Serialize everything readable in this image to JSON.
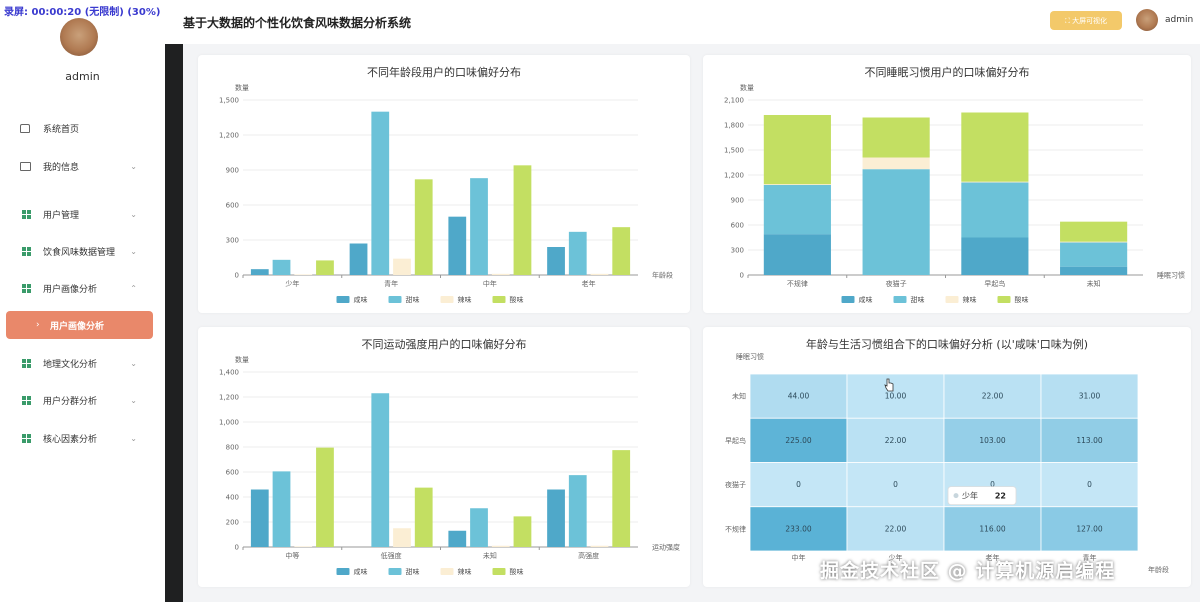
{
  "recording_badge": "录屏: 00:00:20 (无限制) (30%)",
  "sidebar": {
    "user": "admin",
    "items": [
      {
        "label": "系统首页",
        "icon": "home-icon",
        "arrow": ""
      },
      {
        "label": "我的信息",
        "icon": "card-icon",
        "arrow": "⌄"
      },
      {
        "label": "用户管理",
        "icon": "grid-icon",
        "arrow": "⌄"
      },
      {
        "label": "饮食风味数据管理",
        "icon": "grid-icon",
        "arrow": "⌄"
      },
      {
        "label": "用户画像分析",
        "icon": "grid-icon",
        "arrow": "⌃"
      },
      {
        "label": "地理文化分析",
        "icon": "grid-icon",
        "arrow": "⌄"
      },
      {
        "label": "用户分群分析",
        "icon": "grid-icon",
        "arrow": "⌄"
      },
      {
        "label": "核心因素分析",
        "icon": "grid-icon",
        "arrow": "⌄"
      }
    ],
    "active_sub_item": "用户画像分析",
    "active_arrow": "›"
  },
  "header": {
    "title": "基于大数据的个性化饮食风味数据分析系统",
    "screen_button": "⛶ 大屏可视化",
    "user": "admin"
  },
  "colors": {
    "salty": "#4fa8c9",
    "sweet": "#6cc2d8",
    "spicy": "#fbeed4",
    "sour": "#c3df62",
    "accent": "#e9886a"
  },
  "chart_data": [
    {
      "type": "bar",
      "title": "不同年龄段用户的口味偏好分布",
      "xlabel": "年龄段",
      "ylabel": "数量",
      "categories": [
        "少年",
        "青年",
        "中年",
        "老年"
      ],
      "yticks": [
        "0",
        "300",
        "600",
        "900",
        "1,200",
        "1,500"
      ],
      "ylim": [
        0,
        1500
      ],
      "series": [
        {
          "name": "咸味",
          "values": [
            50,
            270,
            500,
            240
          ]
        },
        {
          "name": "甜味",
          "values": [
            130,
            1400,
            830,
            370
          ]
        },
        {
          "name": "辣味",
          "values": [
            5,
            140,
            10,
            10
          ]
        },
        {
          "name": "酸味",
          "values": [
            125,
            820,
            940,
            410
          ]
        }
      ]
    },
    {
      "type": "stacked-bar",
      "title": "不同睡眠习惯用户的口味偏好分布",
      "xlabel": "睡眠习惯",
      "ylabel": "数量",
      "categories": [
        "不规律",
        "夜猫子",
        "早起鸟",
        "未知"
      ],
      "yticks": [
        "0",
        "300",
        "600",
        "900",
        "1,200",
        "1,500",
        "1,800",
        "2,100"
      ],
      "ylim": [
        0,
        2100
      ],
      "series": [
        {
          "name": "咸味",
          "values": [
            490,
            0,
            450,
            100
          ]
        },
        {
          "name": "甜味",
          "values": [
            590,
            1270,
            660,
            290
          ]
        },
        {
          "name": "辣味",
          "values": [
            10,
            140,
            10,
            10
          ]
        },
        {
          "name": "酸味",
          "values": [
            830,
            480,
            830,
            240
          ]
        }
      ]
    },
    {
      "type": "bar",
      "title": "不同运动强度用户的口味偏好分布",
      "xlabel": "运动强度",
      "ylabel": "数量",
      "categories": [
        "中等",
        "低强度",
        "未知",
        "高强度"
      ],
      "yticks": [
        "0",
        "200",
        "400",
        "600",
        "800",
        "1,000",
        "1,200",
        "1,400"
      ],
      "ylim": [
        0,
        1400
      ],
      "series": [
        {
          "name": "咸味",
          "values": [
            460,
            0,
            130,
            460
          ]
        },
        {
          "name": "甜味",
          "values": [
            605,
            1230,
            310,
            575
          ]
        },
        {
          "name": "辣味",
          "values": [
            5,
            150,
            10,
            10
          ]
        },
        {
          "name": "酸味",
          "values": [
            795,
            475,
            245,
            775
          ]
        }
      ]
    },
    {
      "type": "heatmap",
      "title": "年龄与生活习惯组合下的口味偏好分析 (以'咸味'口味为例)",
      "xlabel": "年龄段",
      "ylabel": "睡眠习惯",
      "rows": [
        "未知",
        "早起鸟",
        "夜猫子",
        "不规律"
      ],
      "cols": [
        "少年",
        "青年",
        "中年",
        "老年"
      ],
      "values": [
        [
          "44.00",
          "10.00",
          "22.00",
          "31.00"
        ],
        [
          "225.00",
          "22.00",
          "103.00",
          "113.00"
        ],
        [
          "0",
          "0",
          "0",
          "0"
        ],
        [
          "233.00",
          "22.00",
          "116.00",
          "127.00"
        ]
      ],
      "x_tick_labels": [
        "中年",
        "少年",
        "老年",
        "青年"
      ],
      "tooltip": {
        "label": "少年",
        "value": "22"
      }
    }
  ],
  "watermark": "掘金技术社区 @ 计算机源启编程"
}
